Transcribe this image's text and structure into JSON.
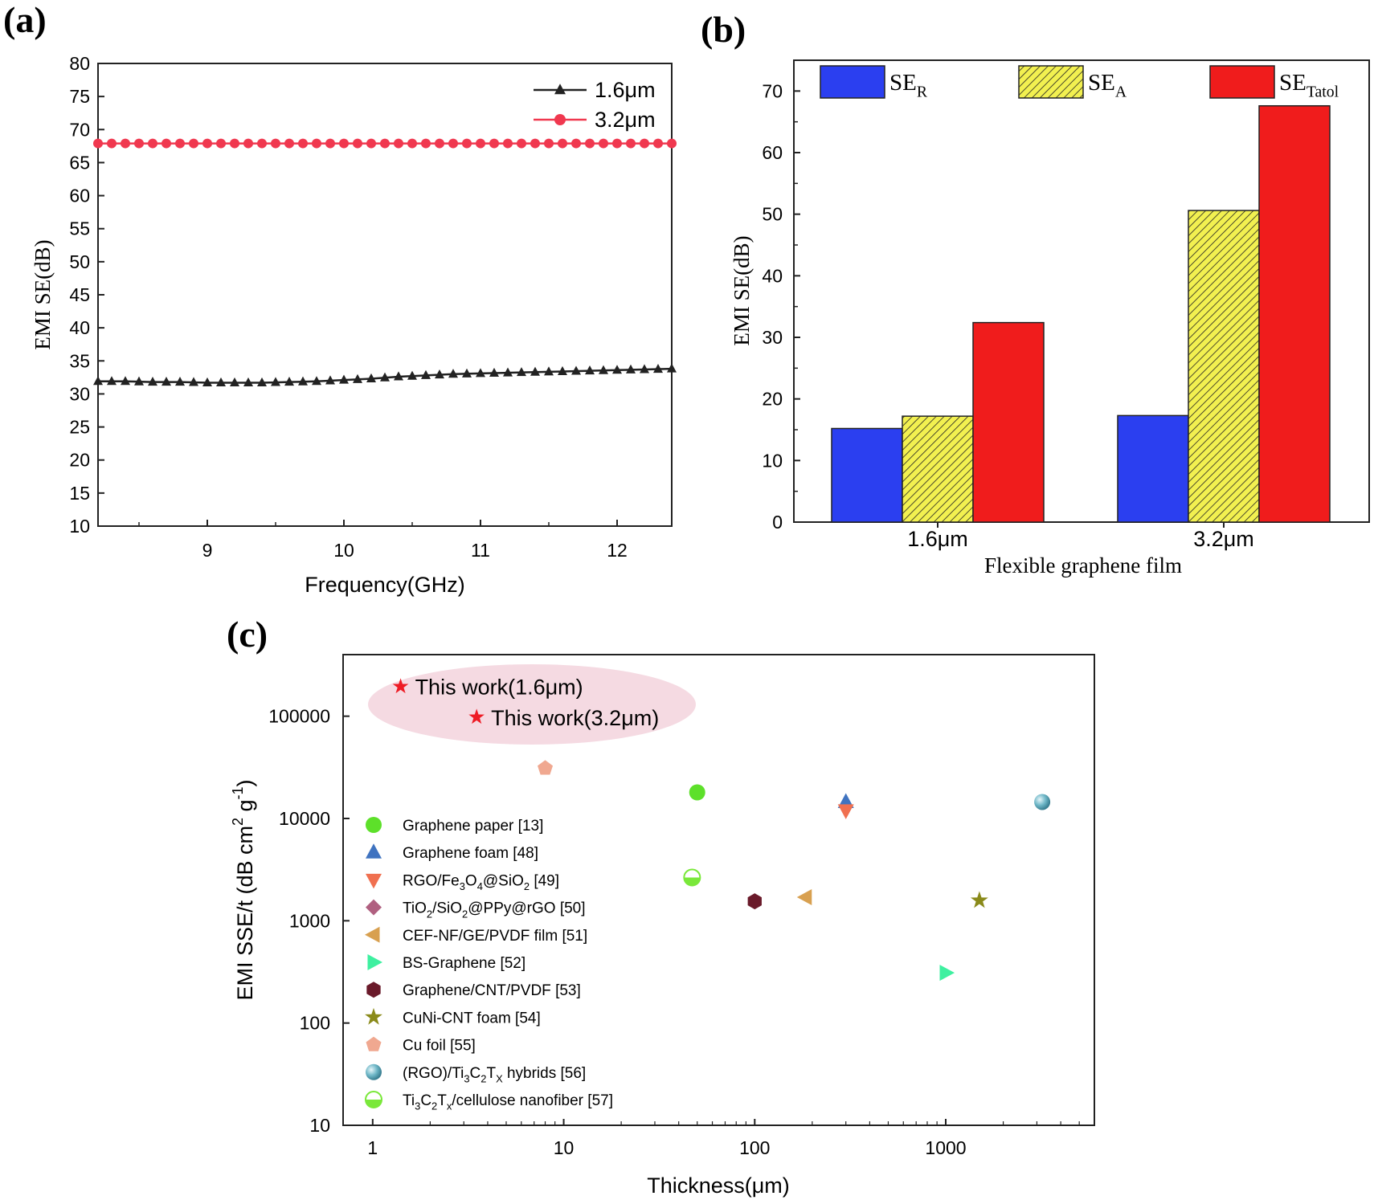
{
  "chart_data": [
    {
      "panel_label": "(a)",
      "type": "line",
      "xlabel": "Frequency(GHz)",
      "ylabel": "EMI SE(dB)",
      "xlim": [
        8.2,
        12.4
      ],
      "ylim": [
        10,
        80
      ],
      "xticks": [
        9,
        10,
        11,
        12
      ],
      "yticks": [
        10,
        15,
        20,
        25,
        30,
        35,
        40,
        45,
        50,
        55,
        60,
        65,
        70,
        75,
        80
      ],
      "legend": "top-right",
      "grid": false,
      "x": [
        8.2,
        8.4,
        8.6,
        8.8,
        9.0,
        9.2,
        9.4,
        9.6,
        9.8,
        10.0,
        10.2,
        10.4,
        10.6,
        10.8,
        11.0,
        11.2,
        11.4,
        11.6,
        11.8,
        12.0,
        12.2,
        12.4
      ],
      "series": [
        {
          "name": "1.6μm",
          "color": "#222222",
          "marker": "triangle",
          "values": [
            31.9,
            31.9,
            31.8,
            31.8,
            31.7,
            31.7,
            31.7,
            31.8,
            31.9,
            32.1,
            32.3,
            32.6,
            32.8,
            33.0,
            33.1,
            33.2,
            33.3,
            33.4,
            33.5,
            33.6,
            33.7,
            33.8
          ]
        },
        {
          "name": "3.2μm",
          "color": "#f0384f",
          "marker": "circle",
          "values": [
            67.9,
            67.9,
            67.9,
            67.9,
            67.9,
            67.9,
            67.9,
            67.9,
            67.9,
            67.9,
            67.9,
            67.9,
            67.9,
            67.9,
            67.9,
            67.9,
            67.9,
            67.9,
            67.9,
            67.9,
            67.9,
            67.9
          ]
        }
      ]
    },
    {
      "panel_label": "(b)",
      "type": "bar",
      "xlabel": "Flexible graphene film",
      "ylabel": "EMI SE(dB)",
      "ylim": [
        0,
        75
      ],
      "yticks": [
        0,
        10,
        20,
        30,
        40,
        50,
        60,
        70
      ],
      "categories": [
        "1.6μm",
        "3.2μm"
      ],
      "legend": "top",
      "grid": false,
      "series": [
        {
          "name": "SE",
          "sub": "R",
          "color": "#2b3ff0",
          "hatch": false,
          "values": [
            15.2,
            17.3
          ]
        },
        {
          "name": "SE",
          "sub": "A",
          "color": "#f2f050",
          "hatch": true,
          "values": [
            17.2,
            50.6
          ]
        },
        {
          "name": "SE",
          "sub": "Tatol",
          "color": "#f01c1c",
          "hatch": false,
          "values": [
            32.4,
            67.6
          ]
        }
      ]
    },
    {
      "panel_label": "(c)",
      "type": "scatter",
      "xlabel": "Thickness(μm)",
      "ylabel_parts": [
        "EMI SSE/t (dB cm",
        "2",
        " g",
        "-1",
        ")"
      ],
      "xscale": "log",
      "yscale": "log",
      "xlim": [
        0.7,
        6000
      ],
      "ylim": [
        10,
        400000
      ],
      "xticks": [
        "1",
        "10",
        "100",
        "1000"
      ],
      "yticks": [
        "10",
        "100",
        "1000",
        "10000",
        "100000"
      ],
      "legend": "bottom-left",
      "grid": false,
      "highlight_points": [
        {
          "label": "This work(1.6μm)",
          "x": 1.4,
          "y": 195000,
          "color": "#ee1c25"
        },
        {
          "label": "This work(3.2μm)",
          "x": 3.5,
          "y": 98000,
          "color": "#ee1c25"
        }
      ],
      "series": [
        {
          "name_parts": [
            "Graphene paper [13]"
          ],
          "marker": "circle",
          "color": "#5de02a",
          "points": [
            [
              50,
              18000
            ]
          ]
        },
        {
          "name_parts": [
            "Graphene foam [48]"
          ],
          "marker": "triangle-up",
          "color": "#3f73c0",
          "points": [
            [
              300,
              14500
            ]
          ]
        },
        {
          "name_parts": [
            "RGO/Fe",
            "3",
            "O",
            "4",
            "@SiO",
            "2",
            " [49]"
          ],
          "marker": "triangle-down",
          "color": "#f07050",
          "points": [
            [
              300,
              12000
            ]
          ]
        },
        {
          "name_parts": [
            "TiO",
            "2",
            "/SiO",
            "2",
            "@PPy@rGO [50]"
          ],
          "marker": "diamond",
          "color": "#b06080",
          "points": []
        },
        {
          "name_parts": [
            "CEF-NF/GE/PVDF film [51]"
          ],
          "marker": "triangle-left",
          "color": "#d8a050",
          "points": [
            [
              185,
              1700
            ]
          ]
        },
        {
          "name_parts": [
            "BS-Graphene [52]"
          ],
          "marker": "triangle-right",
          "color": "#3ef0a0",
          "points": [
            [
              1000,
              310
            ]
          ]
        },
        {
          "name_parts": [
            "Graphene/CNT/PVDF [53]"
          ],
          "marker": "hexagon",
          "color": "#6a1a2a",
          "points": [
            [
              100,
              1550
            ]
          ]
        },
        {
          "name_parts": [
            "CuNi-CNT foam [54]"
          ],
          "marker": "star",
          "color": "#8a8a1a",
          "points": [
            [
              1500,
              1580
            ]
          ]
        },
        {
          "name_parts": [
            "Cu foil [55]"
          ],
          "marker": "pentagon",
          "color": "#f0a890",
          "points": [
            [
              8,
              31000
            ]
          ]
        },
        {
          "name_parts": [
            "(RGO)/Ti",
            "3",
            "C",
            "2",
            "T",
            "X",
            " hybrids [56]"
          ],
          "marker": "sphere",
          "color": "#70b8c8",
          "points": [
            [
              3200,
              14500
            ]
          ]
        },
        {
          "name_parts": [
            "Ti",
            "3",
            "C",
            "2",
            "T",
            "x",
            "/cellulose nanofiber [57]"
          ],
          "marker": "half-circle",
          "color": "#7ae83a",
          "points": [
            [
              47,
              2650
            ]
          ]
        }
      ]
    }
  ]
}
